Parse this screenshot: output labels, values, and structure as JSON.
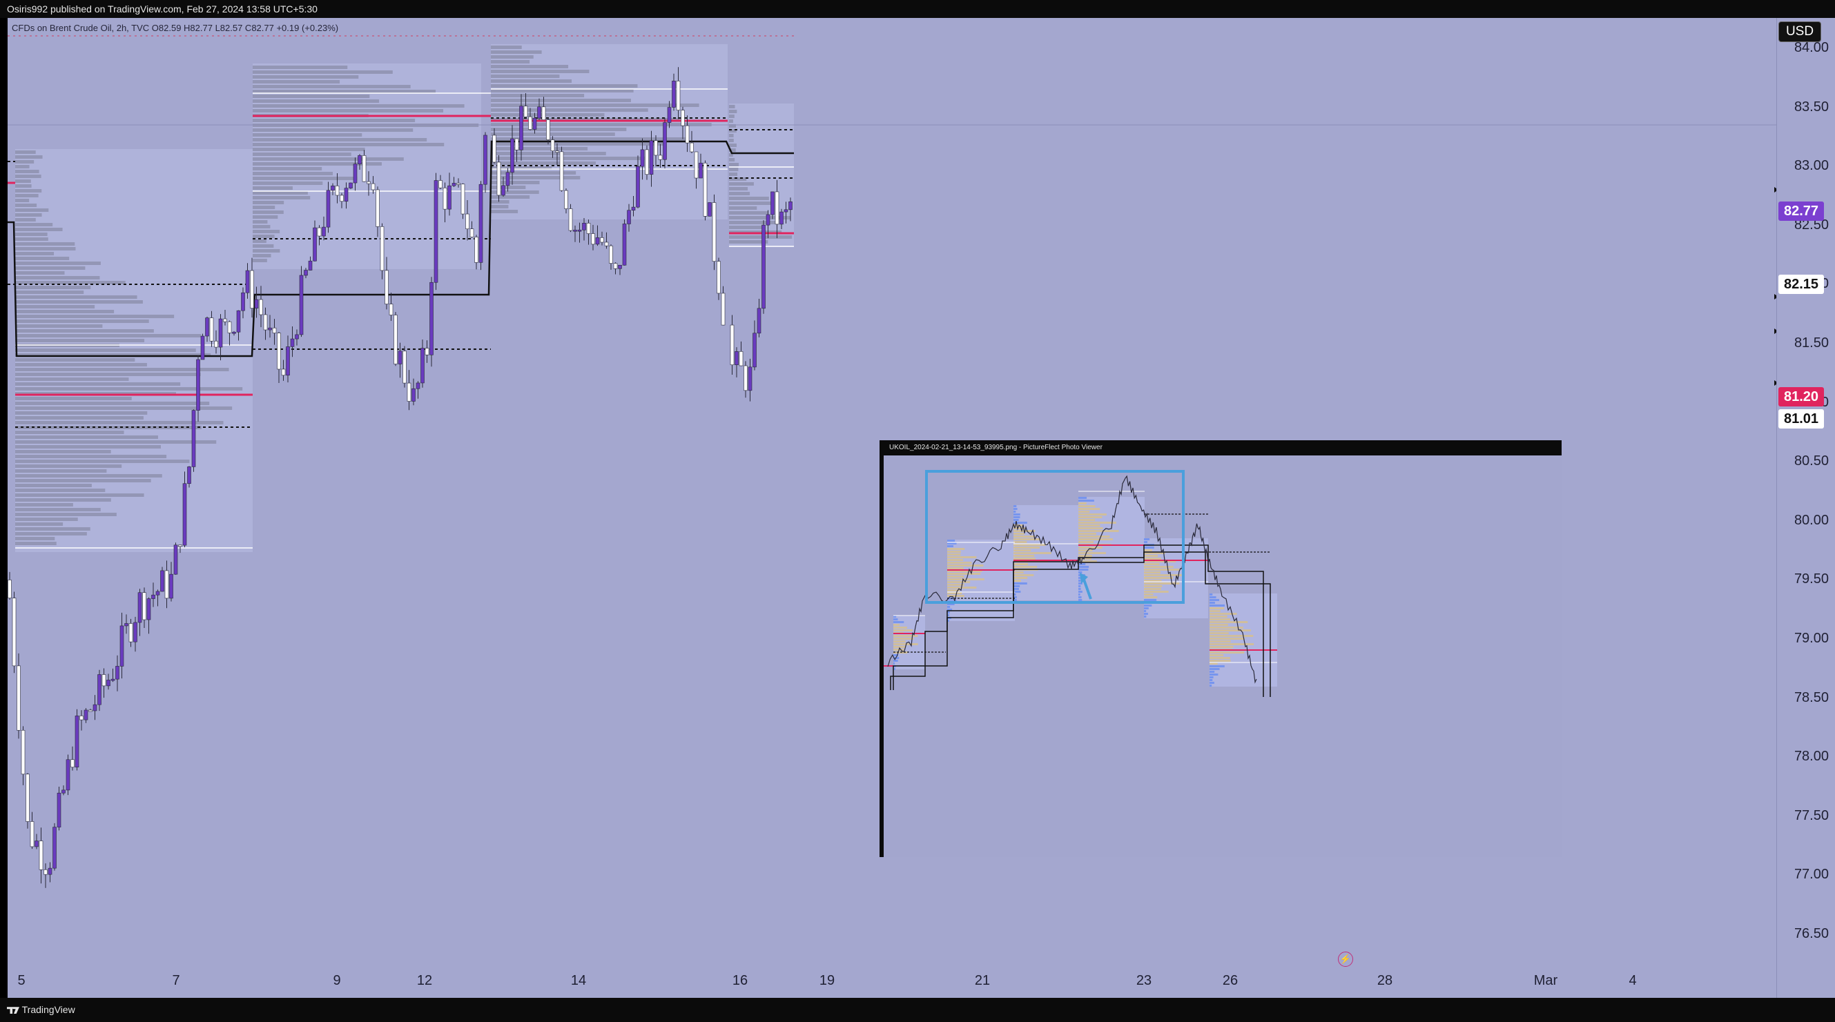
{
  "header": {
    "publisher": "Osiris992 published on TradingView.com, Feb 27, 2024 13:58 UTC+5:30"
  },
  "legend": {
    "text": "CFDs on Brent Crude Oil, 2h, TVC  O82.59  H82.77  L82.57  C82.77  +0.19 (+0.23%)"
  },
  "currency": "USD",
  "price_axis": {
    "ticks": [
      "84.00",
      "83.50",
      "83.00",
      "82.50",
      "82.00",
      "81.50",
      "81.00",
      "80.50",
      "80.00",
      "79.50",
      "79.00",
      "78.50",
      "78.00",
      "77.50",
      "77.00",
      "76.50"
    ]
  },
  "badges": {
    "last": {
      "value": "82.77",
      "bg": "#7b3fd0",
      "fg": "#ffffff"
    },
    "level_a": {
      "value": "82.15",
      "bg": "#ffffff",
      "fg": "#111111"
    },
    "poc": {
      "value": "81.20",
      "bg": "#e0245e",
      "fg": "#ffffff"
    },
    "level_b": {
      "value": "81.01",
      "bg": "#ffffff",
      "fg": "#111111"
    }
  },
  "time_axis": {
    "labels": [
      "5",
      "7",
      "9",
      "12",
      "14",
      "16",
      "19",
      "21",
      "23",
      "26",
      "28",
      "Mar",
      "4"
    ]
  },
  "viewer": {
    "title": "UKOIL_2024-02-21_13-14-53_93995.png - PictureFlect Photo Viewer"
  },
  "footer": {
    "brand": "TradingView"
  },
  "colors": {
    "chart_bg": "#a4a7cf",
    "bull": "#6a3bbf",
    "bear": "#ffffff",
    "poc_line": "#e0245e",
    "profile_bar": "#8e90ae",
    "highlight_box": "#4a9fdc"
  }
}
